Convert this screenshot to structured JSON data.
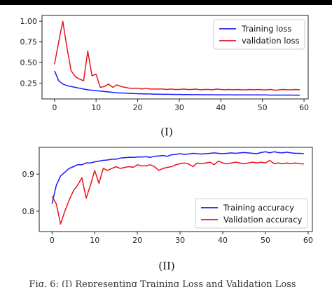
{
  "chart_data": [
    {
      "type": "line",
      "panel_label": "(I)",
      "xlim": [
        -3,
        61
      ],
      "ylim": [
        0.06,
        1.07
      ],
      "xticks": [
        0,
        10,
        20,
        30,
        40,
        50,
        60
      ],
      "yticks": [
        0.25,
        0.5,
        0.75,
        1.0
      ],
      "ytick_labels": [
        "0.25",
        "0.50",
        "0.75",
        "1.00"
      ],
      "legend_position": "top-right",
      "grid": false,
      "series": [
        {
          "name": "Training loss",
          "color": "#1a1aff",
          "x": [
            0,
            1,
            2,
            3,
            4,
            5,
            6,
            7,
            8,
            9,
            10,
            11,
            12,
            13,
            14,
            15,
            16,
            17,
            18,
            19,
            20,
            21,
            22,
            23,
            24,
            25,
            26,
            27,
            28,
            29,
            30,
            31,
            32,
            33,
            34,
            35,
            36,
            37,
            38,
            39,
            40,
            41,
            42,
            43,
            44,
            45,
            46,
            47,
            48,
            49,
            50,
            51,
            52,
            53,
            54,
            55,
            56,
            57,
            58,
            59
          ],
          "values": [
            0.4,
            0.28,
            0.24,
            0.22,
            0.21,
            0.2,
            0.19,
            0.18,
            0.17,
            0.165,
            0.16,
            0.155,
            0.15,
            0.145,
            0.14,
            0.135,
            0.132,
            0.13,
            0.128,
            0.126,
            0.124,
            0.122,
            0.12,
            0.12,
            0.118,
            0.117,
            0.116,
            0.116,
            0.115,
            0.114,
            0.114,
            0.113,
            0.113,
            0.112,
            0.112,
            0.112,
            0.111,
            0.111,
            0.111,
            0.11,
            0.11,
            0.11,
            0.11,
            0.109,
            0.109,
            0.109,
            0.109,
            0.108,
            0.108,
            0.108,
            0.108,
            0.108,
            0.107,
            0.107,
            0.107,
            0.107,
            0.107,
            0.107,
            0.106,
            0.106
          ]
        },
        {
          "name": "validation loss",
          "color": "#e8141e",
          "x": [
            0,
            1,
            2,
            3,
            4,
            5,
            6,
            7,
            8,
            9,
            10,
            11,
            12,
            13,
            14,
            15,
            16,
            17,
            18,
            19,
            20,
            21,
            22,
            23,
            24,
            25,
            26,
            27,
            28,
            29,
            30,
            31,
            32,
            33,
            34,
            35,
            36,
            37,
            38,
            39,
            40,
            41,
            42,
            43,
            44,
            45,
            46,
            47,
            48,
            49,
            50,
            51,
            52,
            53,
            54,
            55,
            56,
            57,
            58,
            59
          ],
          "values": [
            0.48,
            0.75,
            1.0,
            0.68,
            0.4,
            0.33,
            0.3,
            0.28,
            0.64,
            0.34,
            0.36,
            0.2,
            0.21,
            0.24,
            0.2,
            0.23,
            0.21,
            0.2,
            0.19,
            0.19,
            0.19,
            0.18,
            0.19,
            0.18,
            0.18,
            0.18,
            0.18,
            0.175,
            0.18,
            0.175,
            0.175,
            0.18,
            0.175,
            0.175,
            0.18,
            0.17,
            0.175,
            0.175,
            0.17,
            0.18,
            0.175,
            0.17,
            0.175,
            0.17,
            0.175,
            0.17,
            0.17,
            0.175,
            0.17,
            0.175,
            0.17,
            0.17,
            0.175,
            0.165,
            0.17,
            0.175,
            0.17,
            0.17,
            0.175,
            0.17
          ]
        }
      ]
    },
    {
      "type": "line",
      "panel_label": "(II)",
      "xlim": [
        -3,
        61
      ],
      "ylim": [
        0.745,
        0.972
      ],
      "xticks": [
        0,
        10,
        20,
        30,
        40,
        50,
        60
      ],
      "yticks": [
        0.8,
        0.9
      ],
      "ytick_labels": [
        "0.8",
        "0.9"
      ],
      "legend_position": "bottom-right",
      "grid": false,
      "series": [
        {
          "name": "Training accuracy",
          "color": "#1a1aff",
          "x": [
            0,
            1,
            2,
            3,
            4,
            5,
            6,
            7,
            8,
            9,
            10,
            11,
            12,
            13,
            14,
            15,
            16,
            17,
            18,
            19,
            20,
            21,
            22,
            23,
            24,
            25,
            26,
            27,
            28,
            29,
            30,
            31,
            32,
            33,
            34,
            35,
            36,
            37,
            38,
            39,
            40,
            41,
            42,
            43,
            44,
            45,
            46,
            47,
            48,
            49,
            50,
            51,
            52,
            53,
            54,
            55,
            56,
            57,
            58,
            59
          ],
          "values": [
            0.82,
            0.87,
            0.895,
            0.905,
            0.915,
            0.92,
            0.925,
            0.925,
            0.93,
            0.93,
            0.933,
            0.935,
            0.937,
            0.938,
            0.94,
            0.94,
            0.943,
            0.944,
            0.945,
            0.945,
            0.946,
            0.946,
            0.947,
            0.945,
            0.948,
            0.949,
            0.95,
            0.948,
            0.952,
            0.953,
            0.955,
            0.953,
            0.954,
            0.956,
            0.955,
            0.954,
            0.955,
            0.956,
            0.957,
            0.956,
            0.955,
            0.956,
            0.957,
            0.956,
            0.957,
            0.958,
            0.957,
            0.956,
            0.955,
            0.958,
            0.96,
            0.957,
            0.96,
            0.958,
            0.957,
            0.959,
            0.957,
            0.956,
            0.956,
            0.955
          ]
        },
        {
          "name": "Validation accuracy",
          "color": "#e8141e",
          "x": [
            0,
            1,
            2,
            3,
            4,
            5,
            6,
            7,
            8,
            9,
            10,
            11,
            12,
            13,
            14,
            15,
            16,
            17,
            18,
            19,
            20,
            21,
            22,
            23,
            24,
            25,
            26,
            27,
            28,
            29,
            30,
            31,
            32,
            33,
            34,
            35,
            36,
            37,
            38,
            39,
            40,
            41,
            42,
            43,
            44,
            45,
            46,
            47,
            48,
            49,
            50,
            51,
            52,
            53,
            54,
            55,
            56,
            57,
            58,
            59
          ],
          "values": [
            0.84,
            0.82,
            0.765,
            0.8,
            0.83,
            0.855,
            0.87,
            0.89,
            0.835,
            0.87,
            0.91,
            0.875,
            0.915,
            0.91,
            0.915,
            0.92,
            0.915,
            0.918,
            0.92,
            0.918,
            0.925,
            0.922,
            0.922,
            0.925,
            0.92,
            0.91,
            0.915,
            0.918,
            0.92,
            0.925,
            0.928,
            0.93,
            0.927,
            0.92,
            0.93,
            0.928,
            0.93,
            0.932,
            0.925,
            0.935,
            0.93,
            0.928,
            0.93,
            0.932,
            0.93,
            0.928,
            0.93,
            0.932,
            0.93,
            0.932,
            0.93,
            0.937,
            0.928,
            0.93,
            0.928,
            0.93,
            0.928,
            0.93,
            0.928,
            0.927
          ]
        }
      ]
    }
  ],
  "caption": "Fig. 6: (I) Representing Training Loss and Validation Loss"
}
